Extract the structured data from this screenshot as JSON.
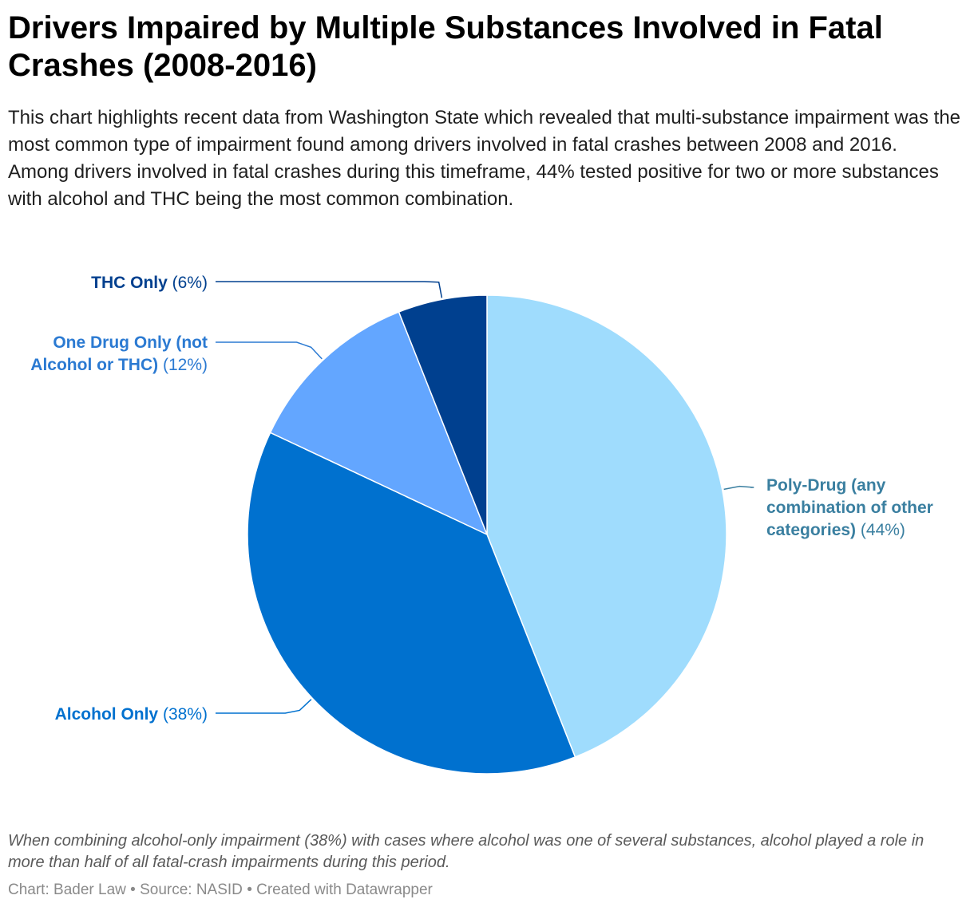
{
  "header": {
    "title": "Drivers Impaired by Multiple Substances Involved in Fatal Crashes (2008-2016)",
    "subtitle": "This chart highlights recent data from Washington State which revealed that multi-substance impairment was the most common type of impairment found among drivers involved in fatal crashes between 2008 and 2016. Among drivers involved in fatal crashes during this timeframe, 44% tested positive for two or more substances with alcohol and THC being the most common combination."
  },
  "chart_data": {
    "type": "pie",
    "start_angle_deg": 0,
    "direction": "clockwise",
    "slices": [
      {
        "name": "Poly-Drug (any combination of other categories)",
        "value_label": "(44%)",
        "value": 44,
        "color": "#9fdcfd",
        "label_color": "#3a7fa0"
      },
      {
        "name": "Alcohol Only",
        "value_label": "(38%)",
        "value": 38,
        "color": "#0071cf",
        "label_color": "#0071cf"
      },
      {
        "name": "One Drug Only (not Alcohol or THC)",
        "value_label": "(12%)",
        "value": 12,
        "color": "#63a6ff",
        "label_color": "#2b7ad2"
      },
      {
        "name": "THC Only",
        "value_label": "(6%)",
        "value": 6,
        "color": "#00408f",
        "label_color": "#00408f"
      }
    ]
  },
  "notes": "When combining alcohol-only impairment (38%) with cases where alcohol was one of several substances, alcohol played a role in more than half of all fatal-crash impairments during this period.",
  "footer": {
    "chart_by": "Chart: Bader Law",
    "source": "Source: NASID",
    "created_with": "Created with Datawrapper",
    "separator": "•"
  }
}
